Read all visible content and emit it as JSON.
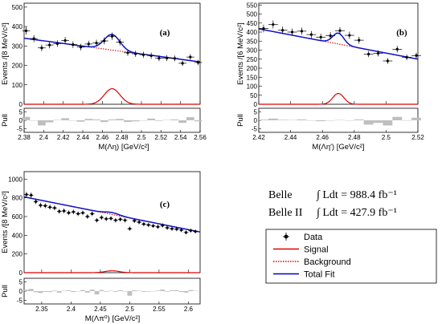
{
  "chart_data": [
    {
      "type": "scatter",
      "panel_label": "(a)",
      "xlabel": "M(Λη) [GeV/c²]",
      "ylabel": "Events /[8 MeV/c²]",
      "pull_label": "Pull",
      "xlim": [
        2.38,
        2.56
      ],
      "ylim": [
        0,
        520
      ],
      "pull_ylim": [
        -7,
        7
      ],
      "xticks": [
        "2.38",
        "2.4",
        "2.42",
        "2.44",
        "2.46",
        "2.48",
        "2.5",
        "2.52",
        "2.54",
        "2.56"
      ],
      "yticks": [
        "0",
        "100",
        "200",
        "300",
        "400",
        "500"
      ],
      "pull_yticks": [
        "-5",
        "0",
        "5"
      ],
      "signal": {
        "mean": 2.47,
        "sigma": 0.008,
        "amp": 80
      },
      "background": {
        "x0": 2.38,
        "y0": 340,
        "x1": 2.56,
        "y1": 218
      },
      "data": {
        "x": [
          2.382,
          2.39,
          2.398,
          2.406,
          2.414,
          2.422,
          2.43,
          2.438,
          2.446,
          2.454,
          2.462,
          2.47,
          2.478,
          2.486,
          2.494,
          2.502,
          2.51,
          2.518,
          2.526,
          2.534,
          2.542,
          2.55,
          2.558
        ],
        "y": [
          378,
          338,
          290,
          305,
          312,
          328,
          307,
          294,
          310,
          315,
          326,
          350,
          320,
          265,
          260,
          255,
          250,
          237,
          238,
          236,
          211,
          243,
          215
        ],
        "err": [
          19,
          18,
          17,
          17,
          17,
          18,
          17,
          17,
          17,
          17,
          18,
          19,
          18,
          16,
          16,
          16,
          16,
          15,
          15,
          15,
          14,
          15,
          14
        ]
      },
      "pulls": [
        2.0,
        -0.2,
        -3.0,
        -1.2,
        0.2,
        1.2,
        0.0,
        -0.8,
        0.8,
        0.5,
        -1.0,
        0.5,
        0.8,
        -1.0,
        -0.6,
        0.0,
        1.0,
        -0.3,
        0.2,
        0.5,
        -1.5,
        1.8,
        -0.6
      ]
    },
    {
      "type": "scatter",
      "panel_label": "(b)",
      "xlabel": "M(Λη′) [GeV/c²]",
      "ylabel": "Events /[6 MeV/c²]",
      "pull_label": "Pull",
      "xlim": [
        2.42,
        2.52
      ],
      "ylim": [
        0,
        560
      ],
      "pull_ylim": [
        -7,
        7
      ],
      "xticks": [
        "2.42",
        "2.44",
        "2.46",
        "2.48",
        "2.5",
        "2.52"
      ],
      "yticks": [
        "0",
        "50",
        "100",
        "150",
        "200",
        "250",
        "300",
        "350",
        "400",
        "450",
        "500",
        "550"
      ],
      "pull_yticks": [
        "-5",
        "0",
        "5"
      ],
      "signal": {
        "mean": 2.47,
        "sigma": 0.0035,
        "amp": 60
      },
      "background": {
        "x0": 2.42,
        "y0": 418,
        "x1": 2.52,
        "y1": 250
      },
      "data": {
        "x": [
          2.423,
          2.429,
          2.435,
          2.441,
          2.447,
          2.453,
          2.459,
          2.465,
          2.471,
          2.477,
          2.483,
          2.489,
          2.495,
          2.501,
          2.507,
          2.513,
          2.519
        ],
        "y": [
          420,
          442,
          410,
          400,
          405,
          386,
          372,
          380,
          408,
          382,
          355,
          278,
          282,
          240,
          305,
          260,
          270
        ],
        "err": [
          21,
          22,
          21,
          20,
          20,
          20,
          19,
          20,
          20,
          20,
          19,
          17,
          17,
          16,
          18,
          16,
          16
        ]
      },
      "pulls": [
        0.4,
        1.0,
        0.3,
        0.2,
        0.5,
        0.0,
        -0.5,
        0.0,
        0.2,
        0.0,
        0.5,
        -2.5,
        -1.5,
        -3.0,
        2.0,
        0.0,
        1.5
      ]
    },
    {
      "type": "scatter",
      "panel_label": "(c)",
      "xlabel": "M(Λπ⁰) [GeV/c²]",
      "ylabel": "Events /[8 MeV/c²]",
      "pull_label": "Pull",
      "xlim": [
        2.32,
        2.62
      ],
      "ylim": [
        0,
        1080
      ],
      "pull_ylim": [
        -7,
        7
      ],
      "xticks": [
        "2.35",
        "2.4",
        "2.45",
        "2.5",
        "2.55",
        "2.6"
      ],
      "yticks": [
        "0",
        "200",
        "400",
        "600",
        "800",
        "1000"
      ],
      "pull_yticks": [
        "-5",
        "0",
        "5"
      ],
      "signal": {
        "mean": 2.47,
        "sigma": 0.012,
        "amp": 20
      },
      "background": {
        "x0": 2.32,
        "y0": 810,
        "x1": 2.62,
        "y1": 435
      },
      "data": {
        "x": [
          2.324,
          2.332,
          2.34,
          2.348,
          2.356,
          2.364,
          2.372,
          2.38,
          2.388,
          2.396,
          2.404,
          2.412,
          2.42,
          2.428,
          2.436,
          2.444,
          2.452,
          2.46,
          2.468,
          2.476,
          2.484,
          2.492,
          2.5,
          2.508,
          2.516,
          2.524,
          2.532,
          2.54,
          2.548,
          2.556,
          2.564,
          2.572,
          2.58,
          2.588,
          2.596,
          2.604,
          2.612
        ],
        "y": [
          835,
          828,
          760,
          720,
          715,
          700,
          692,
          655,
          660,
          640,
          650,
          630,
          640,
          600,
          630,
          560,
          590,
          575,
          580,
          560,
          570,
          560,
          470,
          555,
          540,
          520,
          510,
          500,
          490,
          505,
          480,
          470,
          465,
          455,
          430,
          450,
          440
        ],
        "err": [
          29,
          29,
          28,
          27,
          27,
          26,
          26,
          26,
          26,
          25,
          25,
          25,
          25,
          24,
          25,
          24,
          24,
          24,
          24,
          24,
          24,
          24,
          22,
          24,
          23,
          23,
          23,
          22,
          22,
          22,
          22,
          22,
          22,
          21,
          21,
          21,
          21
        ]
      },
      "pulls": [
        0.8,
        1.2,
        -0.6,
        -1.0,
        -0.4,
        -0.5,
        0.3,
        -0.8,
        0.2,
        0.4,
        -0.5,
        0.0,
        0.6,
        -0.8,
        0.8,
        -1.8,
        0.6,
        -0.3,
        0.2,
        -0.4,
        0.5,
        -0.2,
        -2.5,
        0.5,
        0.2,
        -0.4,
        -0.3,
        0.0,
        0.3,
        0.8,
        -0.3,
        0.4,
        0.5,
        -0.5,
        -0.8,
        0.6,
        0.2
      ]
    }
  ],
  "luminosity": [
    {
      "experiment": "Belle",
      "value": "988.4",
      "unit": "fb⁻¹"
    },
    {
      "experiment": "Belle II",
      "value": "427.9",
      "unit": "fb⁻¹"
    }
  ],
  "luminosity_symbol": "∫ Ldt =",
  "legend": [
    {
      "label": "Data",
      "style": "marker",
      "color": "#000000"
    },
    {
      "label": "Signal",
      "style": "solid",
      "color": "#e00000"
    },
    {
      "label": "Background",
      "style": "dotted",
      "color": "#e00000"
    },
    {
      "label": "Total Fit",
      "style": "solid",
      "color": "#0000cc"
    }
  ],
  "colors": {
    "total_fit": "#1010c8",
    "signal": "#e00000",
    "background": "#e00000",
    "pull_bar": "#bfbfbf"
  }
}
